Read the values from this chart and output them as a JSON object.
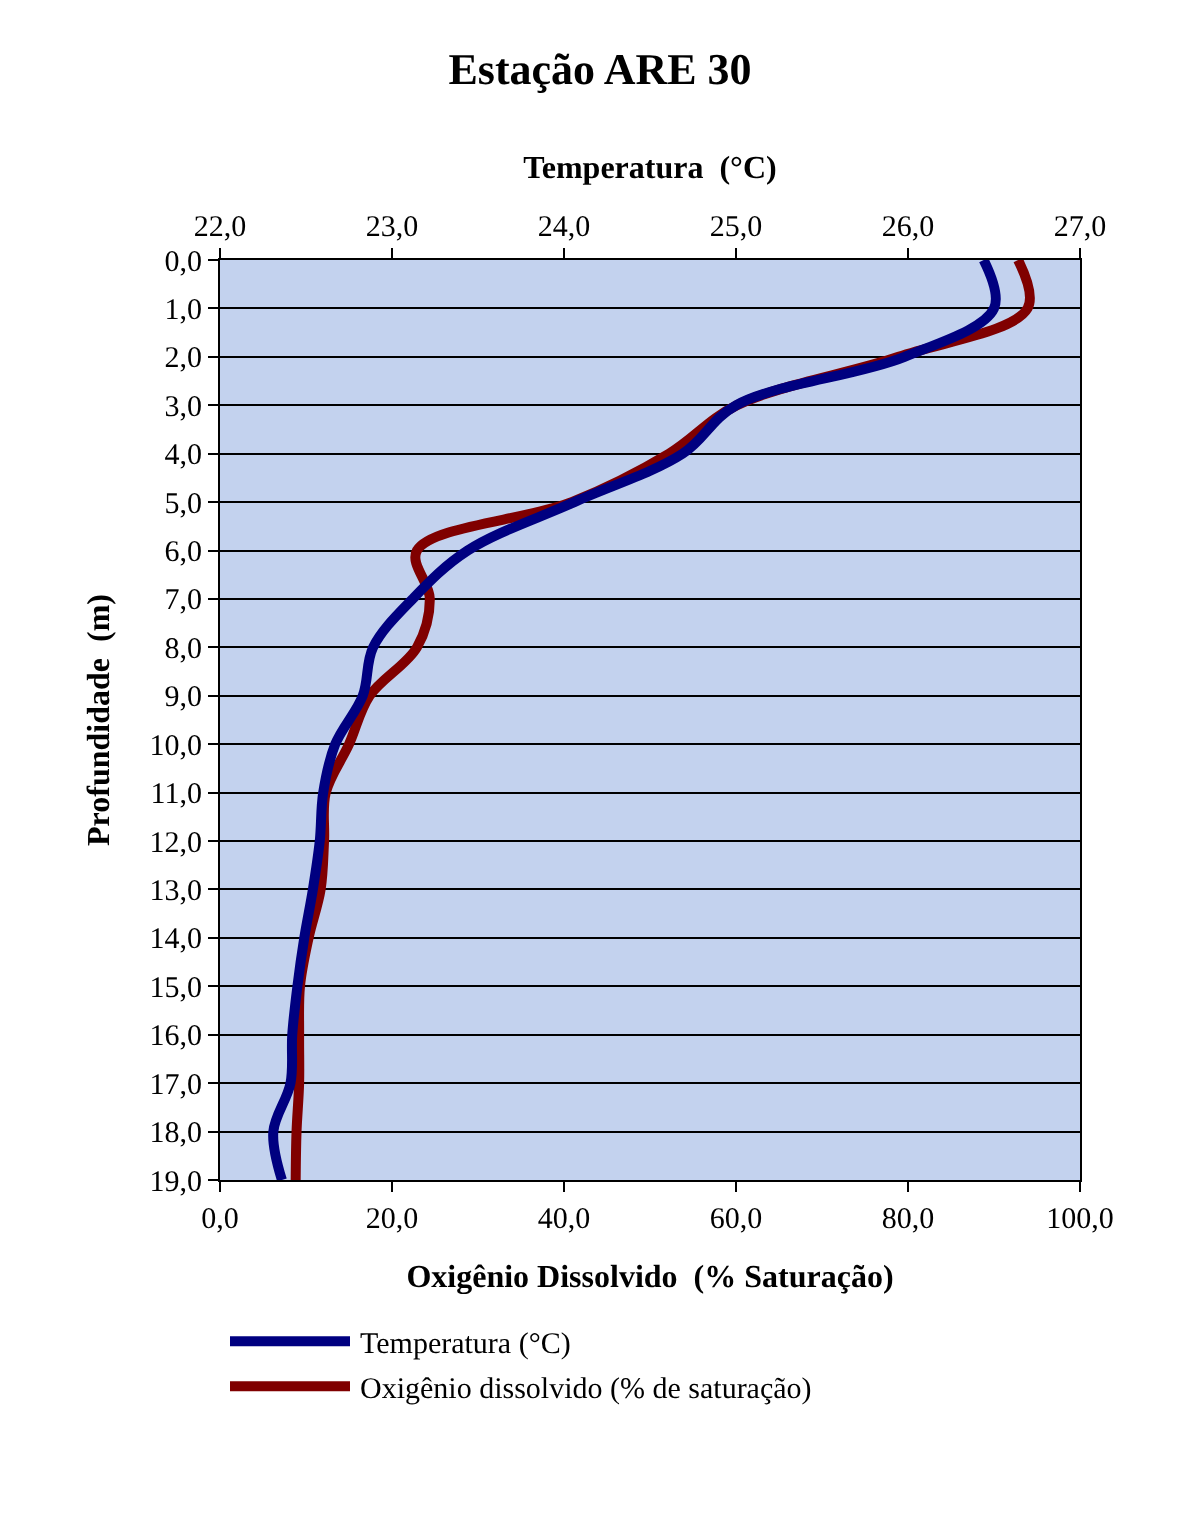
{
  "chart_data": {
    "type": "line",
    "title": "Estação ARE 30",
    "x2label": "Temperatura  (°C)",
    "xlabel": "Oxigênio Dissolvido  (% Saturação)",
    "ylabel": "Profundidade  (m)",
    "xlim": [
      0,
      100
    ],
    "xticks": [
      {
        "value": 0,
        "label": "0,0"
      },
      {
        "value": 20,
        "label": "20,0"
      },
      {
        "value": 40,
        "label": "40,0"
      },
      {
        "value": 60,
        "label": "60,0"
      },
      {
        "value": 80,
        "label": "80,0"
      },
      {
        "value": 100,
        "label": "100,0"
      }
    ],
    "x2lim": [
      22,
      27
    ],
    "x2ticks": [
      {
        "value": 22,
        "label": "22,0"
      },
      {
        "value": 23,
        "label": "23,0"
      },
      {
        "value": 24,
        "label": "24,0"
      },
      {
        "value": 25,
        "label": "25,0"
      },
      {
        "value": 26,
        "label": "26,0"
      },
      {
        "value": 27,
        "label": "27,0"
      }
    ],
    "ylim": [
      19,
      0
    ],
    "yticks": [
      {
        "value": 0,
        "label": "0,0"
      },
      {
        "value": 1,
        "label": "1,0"
      },
      {
        "value": 2,
        "label": "2,0"
      },
      {
        "value": 3,
        "label": "3,0"
      },
      {
        "value": 4,
        "label": "4,0"
      },
      {
        "value": 5,
        "label": "5,0"
      },
      {
        "value": 6,
        "label": "6,0"
      },
      {
        "value": 7,
        "label": "7,0"
      },
      {
        "value": 8,
        "label": "8,0"
      },
      {
        "value": 9,
        "label": "9,0"
      },
      {
        "value": 10,
        "label": "10,0"
      },
      {
        "value": 11,
        "label": "11,0"
      },
      {
        "value": 12,
        "label": "12,0"
      },
      {
        "value": 13,
        "label": "13,0"
      },
      {
        "value": 14,
        "label": "14,0"
      },
      {
        "value": 15,
        "label": "15,0"
      },
      {
        "value": 16,
        "label": "16,0"
      },
      {
        "value": 17,
        "label": "17,0"
      },
      {
        "value": 18,
        "label": "18,0"
      },
      {
        "value": 19,
        "label": "19,0"
      }
    ],
    "grid": "y",
    "legend": "bottom",
    "marker": "none",
    "line_style": "solid",
    "series": [
      {
        "name": "Temperatura (°C)",
        "color": "#000080",
        "axis": "x2",
        "x": [
          26.44,
          26.5,
          25.98,
          25.0,
          24.69,
          24.06,
          23.44,
          23.12,
          22.89,
          22.83,
          22.67,
          22.6,
          22.58,
          22.54,
          22.49,
          22.45,
          22.42,
          22.41,
          22.31,
          22.36
        ],
        "values": [
          0,
          1,
          2,
          3,
          4,
          5,
          6,
          7,
          8,
          9,
          10,
          11,
          12,
          13,
          14,
          15,
          16,
          17,
          18,
          19
        ]
      },
      {
        "name": "Oxigênio dissolvido (% de saturação)",
        "color": "#800000",
        "x": [
          92.8,
          93.9,
          78.9,
          60.1,
          52.2,
          40.9,
          22.9,
          24.4,
          22.9,
          17.4,
          15.0,
          12.3,
          12.1,
          11.7,
          10.3,
          9.3,
          9.2,
          9.2,
          8.9,
          8.8
        ],
        "values": [
          0,
          1,
          2,
          3,
          4,
          5,
          6,
          7,
          8,
          9,
          10,
          11,
          12,
          13,
          14,
          15,
          16,
          17,
          18,
          19
        ]
      }
    ]
  }
}
